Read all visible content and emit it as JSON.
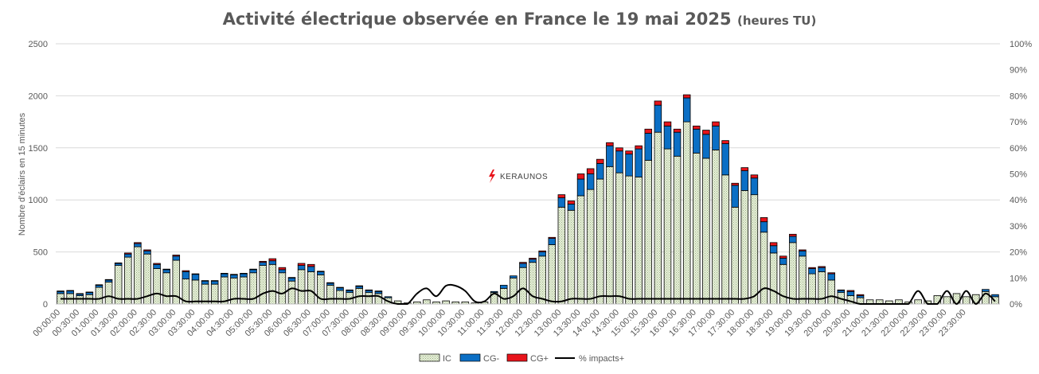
{
  "title": "Activité électrique observée en France le 19 mai 2025",
  "title_suffix": "(heures TU)",
  "logo": "KERAUNOS",
  "chart_data": {
    "type": "bar",
    "stacked": true,
    "ylabel": "Nombre d'éclairs en 15 minutes",
    "ylim": [
      0,
      2500
    ],
    "yticks": [
      "0",
      "500",
      "1000",
      "1500",
      "2000",
      "2500"
    ],
    "y2lim": [
      0,
      100
    ],
    "y2ticks": [
      "0%",
      "10%",
      "20%",
      "30%",
      "40%",
      "50%",
      "60%",
      "70%",
      "80%",
      "90%",
      "100%"
    ],
    "xtick_labels": [
      "00:00:00",
      "00:30:00",
      "01:00:00",
      "01:30:00",
      "02:00:00",
      "02:30:00",
      "03:00:00",
      "03:30:00",
      "04:00:00",
      "04:30:00",
      "05:00:00",
      "05:30:00",
      "06:00:00",
      "06:30:00",
      "07:00:00",
      "07:30:00",
      "08:00:00",
      "08:30:00",
      "09:00:00",
      "09:30:00",
      "10:00:00",
      "10:30:00",
      "11:00:00",
      "11:30:00",
      "12:00:00",
      "12:30:00",
      "13:00:00",
      "13:30:00",
      "14:00:00",
      "14:30:00",
      "15:00:00",
      "15:30:00",
      "16:00:00",
      "16:30:00",
      "17:00:00",
      "17:30:00",
      "18:00:00",
      "18:30:00",
      "19:00:00",
      "19:30:00",
      "20:00:00",
      "20:30:00",
      "21:00:00",
      "21:30:00",
      "22:00:00",
      "22:30:00",
      "23:00:00",
      "23:30:00"
    ],
    "legend": [
      "IC",
      "CG-",
      "CG+",
      "% impacts+"
    ],
    "legend_position": "bottom",
    "grid": true,
    "colors": {
      "IC": "#e6efd8",
      "CG-": "#0b6fc5",
      "CG+": "#e8141b",
      "line": "#000000",
      "grid": "#d9d9d9"
    },
    "series": [
      {
        "name": "IC",
        "values": [
          100,
          100,
          80,
          90,
          160,
          210,
          370,
          450,
          550,
          480,
          340,
          300,
          420,
          240,
          230,
          190,
          190,
          260,
          250,
          260,
          300,
          370,
          380,
          300,
          220,
          330,
          310,
          280,
          180,
          130,
          110,
          150,
          110,
          100,
          60,
          30,
          10,
          20,
          40,
          20,
          30,
          20,
          20,
          10,
          20,
          110,
          150,
          250,
          350,
          400,
          460,
          570,
          930,
          900,
          1040,
          1100,
          1200,
          1320,
          1260,
          1230,
          1220,
          1380,
          1650,
          1490,
          1420,
          1750,
          1450,
          1400,
          1480,
          1240,
          930,
          1090,
          1050,
          690,
          490,
          380,
          590,
          460,
          290,
          310,
          230,
          110,
          80,
          60,
          40,
          40,
          30,
          40,
          20,
          40,
          30,
          80,
          70,
          100,
          70,
          90,
          120,
          70
        ]
      },
      {
        "name": "CG-",
        "values": [
          20,
          25,
          15,
          20,
          20,
          20,
          20,
          30,
          30,
          30,
          40,
          30,
          40,
          70,
          55,
          30,
          30,
          30,
          30,
          30,
          30,
          30,
          35,
          30,
          30,
          40,
          50,
          30,
          20,
          25,
          20,
          20,
          20,
          20,
          10,
          0,
          0,
          0,
          0,
          0,
          0,
          0,
          0,
          0,
          0,
          10,
          30,
          20,
          40,
          30,
          40,
          60,
          90,
          60,
          160,
          150,
          150,
          200,
          210,
          210,
          270,
          260,
          260,
          220,
          230,
          230,
          230,
          230,
          230,
          300,
          210,
          190,
          160,
          100,
          70,
          60,
          60,
          50,
          50,
          40,
          60,
          20,
          40,
          20,
          0,
          0,
          0,
          0,
          0,
          0,
          0,
          0,
          0,
          0,
          0,
          0,
          20,
          20
        ]
      },
      {
        "name": "CG+",
        "values": [
          5,
          5,
          5,
          5,
          5,
          5,
          5,
          10,
          10,
          10,
          10,
          5,
          10,
          10,
          5,
          5,
          5,
          5,
          5,
          5,
          5,
          10,
          20,
          20,
          5,
          20,
          20,
          5,
          5,
          5,
          5,
          5,
          5,
          5,
          0,
          0,
          0,
          0,
          0,
          0,
          0,
          0,
          0,
          0,
          0,
          0,
          0,
          0,
          10,
          10,
          10,
          10,
          30,
          30,
          50,
          50,
          40,
          30,
          30,
          30,
          30,
          40,
          40,
          40,
          30,
          30,
          30,
          40,
          40,
          30,
          20,
          30,
          30,
          40,
          30,
          20,
          20,
          10,
          10,
          10,
          10,
          5,
          10,
          10,
          0,
          0,
          0,
          0,
          0,
          0,
          0,
          0,
          0,
          0,
          0,
          0,
          0,
          0
        ]
      },
      {
        "name": "% impacts+",
        "values": [
          2,
          2,
          2,
          2,
          2,
          3,
          2,
          2,
          2,
          3,
          4,
          3,
          3,
          1,
          1,
          1,
          1,
          1,
          2,
          2,
          2,
          4,
          5,
          4,
          6,
          5,
          5,
          2,
          2,
          2,
          2,
          3,
          3,
          3,
          1,
          0,
          0,
          4,
          6,
          3,
          7,
          7,
          5,
          1,
          1,
          4,
          2,
          3,
          6,
          3,
          2,
          1,
          1,
          2,
          2,
          2,
          3,
          3,
          3,
          2,
          2,
          2,
          2,
          2,
          2,
          2,
          2,
          2,
          2,
          2,
          2,
          2,
          3,
          6,
          5,
          3,
          2,
          2,
          2,
          2,
          3,
          2,
          1,
          0,
          0,
          0,
          0,
          0,
          0,
          5,
          0,
          0,
          5,
          0,
          5,
          0,
          4,
          1
        ]
      }
    ]
  }
}
